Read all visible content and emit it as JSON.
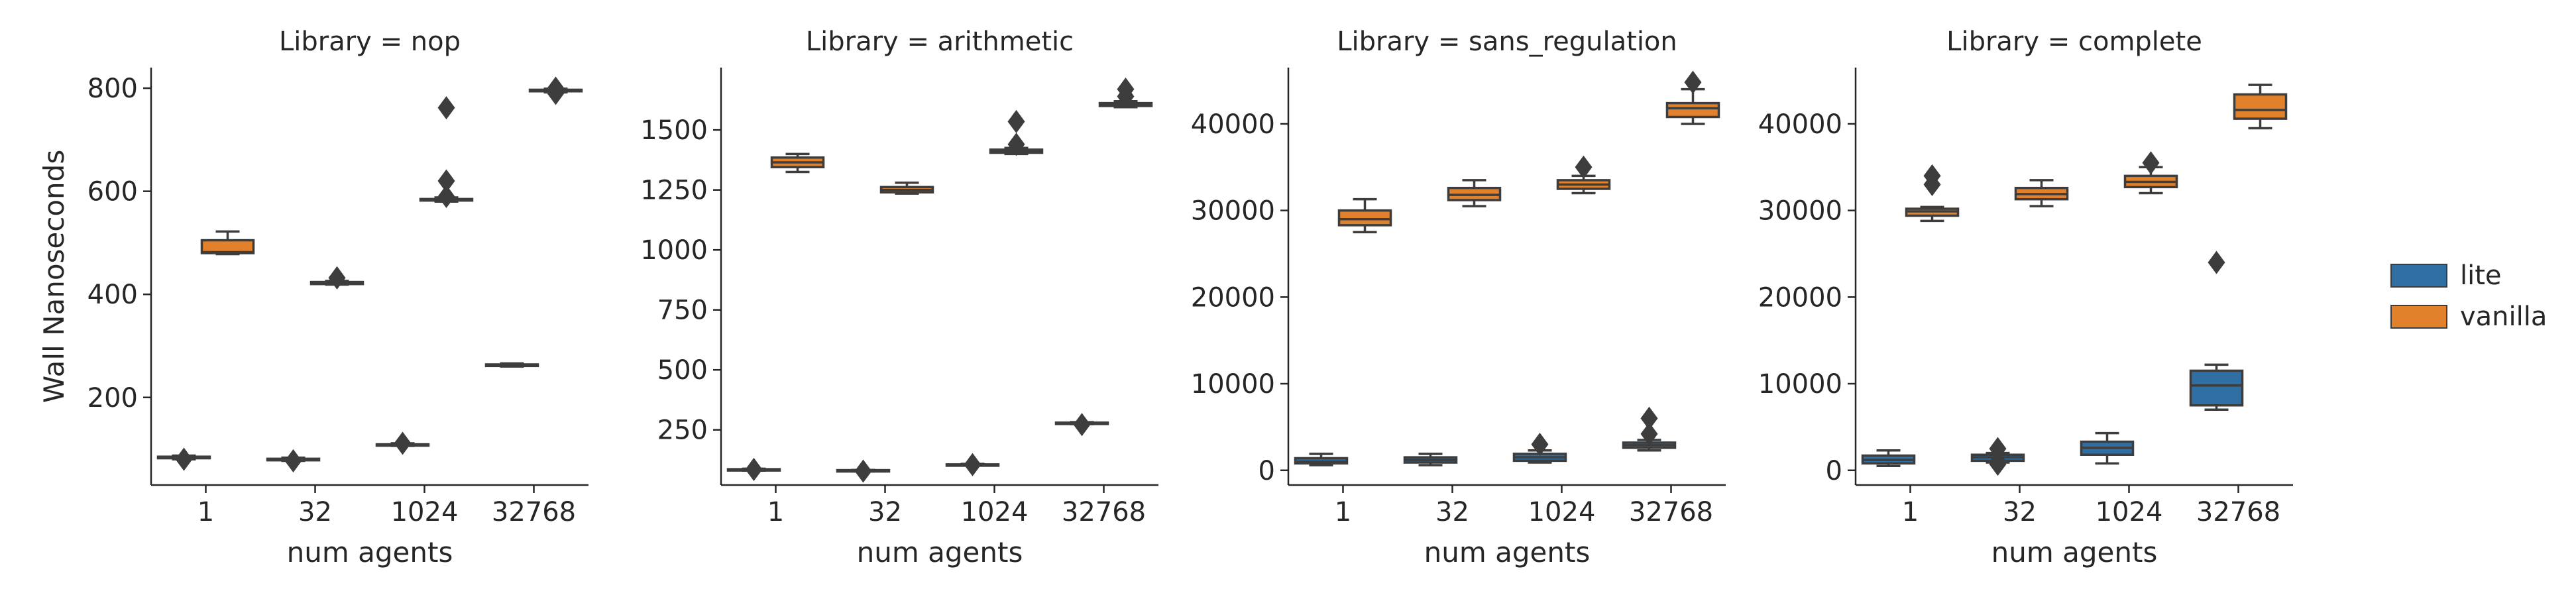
{
  "chart_data": {
    "type": "box",
    "ylabel": "Wall Nanoseconds",
    "xlabel": "num agents",
    "categories": [
      "1",
      "32",
      "1024",
      "32768"
    ],
    "legend": {
      "placement": "right",
      "entries": [
        {
          "name": "lite",
          "color": "#2f6fa3"
        },
        {
          "name": "vanilla",
          "color": "#e1812c"
        }
      ]
    },
    "panels": [
      {
        "title": "Library = nop",
        "ylim": [
          30,
          840
        ],
        "yticks": [
          200,
          400,
          600,
          800
        ],
        "boxes": [
          {
            "category": "1",
            "series": "lite",
            "whislo": 80,
            "q1": 82,
            "med": 84,
            "q3": 85,
            "whishi": 87,
            "fliers": [
              80
            ]
          },
          {
            "category": "1",
            "series": "vanilla",
            "whislo": 478,
            "q1": 480,
            "med": 482,
            "q3": 505,
            "whishi": 522,
            "fliers": []
          },
          {
            "category": "32",
            "series": "lite",
            "whislo": 77,
            "q1": 78,
            "med": 80,
            "q3": 81,
            "whishi": 83,
            "fliers": [
              77
            ]
          },
          {
            "category": "32",
            "series": "vanilla",
            "whislo": 419,
            "q1": 420,
            "med": 422,
            "q3": 424,
            "whishi": 426,
            "fliers": [
              432
            ]
          },
          {
            "category": "1024",
            "series": "lite",
            "whislo": 106,
            "q1": 107,
            "med": 108,
            "q3": 109,
            "whishi": 111,
            "fliers": [
              111
            ]
          },
          {
            "category": "1024",
            "series": "vanilla",
            "whislo": 580,
            "q1": 582,
            "med": 583,
            "q3": 585,
            "whishi": 588,
            "fliers": [
              590,
              620,
              762
            ]
          },
          {
            "category": "32768",
            "series": "lite",
            "whislo": 260,
            "q1": 261,
            "med": 262,
            "q3": 264,
            "whishi": 266,
            "fliers": []
          },
          {
            "category": "32768",
            "series": "vanilla",
            "whislo": 792,
            "q1": 794,
            "med": 795,
            "q3": 797,
            "whishi": 799,
            "fliers": [
              790,
              800
            ]
          }
        ]
      },
      {
        "title": "Library = arithmetic",
        "ylim": [
          20,
          1760
        ],
        "yticks": [
          250,
          500,
          750,
          1000,
          1250,
          1500
        ],
        "boxes": [
          {
            "category": "1",
            "series": "lite",
            "whislo": 80,
            "q1": 82,
            "med": 84,
            "q3": 86,
            "whishi": 88,
            "fliers": [
              85
            ]
          },
          {
            "category": "1",
            "series": "vanilla",
            "whislo": 1325,
            "q1": 1345,
            "med": 1365,
            "q3": 1385,
            "whishi": 1400,
            "fliers": []
          },
          {
            "category": "32",
            "series": "lite",
            "whislo": 77,
            "q1": 78,
            "med": 80,
            "q3": 82,
            "whishi": 83,
            "fliers": [
              78
            ]
          },
          {
            "category": "32",
            "series": "vanilla",
            "whislo": 1235,
            "q1": 1240,
            "med": 1250,
            "q3": 1262,
            "whishi": 1280,
            "fliers": []
          },
          {
            "category": "1024",
            "series": "lite",
            "whislo": 102,
            "q1": 103,
            "med": 104,
            "q3": 106,
            "whishi": 108,
            "fliers": [
              105
            ]
          },
          {
            "category": "1024",
            "series": "vanilla",
            "whislo": 1400,
            "q1": 1405,
            "med": 1410,
            "q3": 1418,
            "whishi": 1425,
            "fliers": [
              1440,
              1535
            ]
          },
          {
            "category": "32768",
            "series": "lite",
            "whislo": 274,
            "q1": 276,
            "med": 278,
            "q3": 280,
            "whishi": 282,
            "fliers": [
              272
            ]
          },
          {
            "category": "32768",
            "series": "vanilla",
            "whislo": 1595,
            "q1": 1600,
            "med": 1605,
            "q3": 1612,
            "whishi": 1620,
            "fliers": [
              1640,
              1670
            ]
          }
        ]
      },
      {
        "title": "Library = sans_regulation",
        "ylim": [
          -1700,
          46500
        ],
        "yticks": [
          0,
          10000,
          20000,
          30000,
          40000
        ],
        "boxes": [
          {
            "category": "1",
            "series": "lite",
            "whislo": 600,
            "q1": 800,
            "med": 1000,
            "q3": 1400,
            "whishi": 1900,
            "fliers": []
          },
          {
            "category": "1",
            "series": "vanilla",
            "whislo": 27500,
            "q1": 28300,
            "med": 29000,
            "q3": 30000,
            "whishi": 31300,
            "fliers": []
          },
          {
            "category": "32",
            "series": "lite",
            "whislo": 600,
            "q1": 900,
            "med": 1200,
            "q3": 1500,
            "whishi": 1900,
            "fliers": []
          },
          {
            "category": "32",
            "series": "vanilla",
            "whislo": 30500,
            "q1": 31200,
            "med": 31800,
            "q3": 32600,
            "whishi": 33500,
            "fliers": []
          },
          {
            "category": "1024",
            "series": "lite",
            "whislo": 900,
            "q1": 1100,
            "med": 1500,
            "q3": 1900,
            "whishi": 2300,
            "fliers": [
              3000
            ]
          },
          {
            "category": "1024",
            "series": "vanilla",
            "whislo": 32000,
            "q1": 32500,
            "med": 33000,
            "q3": 33500,
            "whishi": 34000,
            "fliers": [
              35000
            ]
          },
          {
            "category": "32768",
            "series": "lite",
            "whislo": 2300,
            "q1": 2600,
            "med": 2900,
            "q3": 3200,
            "whishi": 3500,
            "fliers": [
              4200,
              6000
            ]
          },
          {
            "category": "32768",
            "series": "vanilla",
            "whislo": 40000,
            "q1": 40800,
            "med": 41800,
            "q3": 42400,
            "whishi": 44000,
            "fliers": [
              44800
            ]
          }
        ]
      },
      {
        "title": "Library = complete",
        "ylim": [
          -1700,
          46500
        ],
        "yticks": [
          0,
          10000,
          20000,
          30000,
          40000
        ],
        "boxes": [
          {
            "category": "1",
            "series": "lite",
            "whislo": 500,
            "q1": 800,
            "med": 1200,
            "q3": 1700,
            "whishi": 2300,
            "fliers": []
          },
          {
            "category": "1",
            "series": "vanilla",
            "whislo": 28800,
            "q1": 29400,
            "med": 29900,
            "q3": 30200,
            "whishi": 30400,
            "fliers": [
              33000,
              34000
            ]
          },
          {
            "category": "32",
            "series": "lite",
            "whislo": 900,
            "q1": 1100,
            "med": 1500,
            "q3": 1800,
            "whishi": 2000,
            "fliers": [
              700,
              1000,
              2500
            ]
          },
          {
            "category": "32",
            "series": "vanilla",
            "whislo": 30500,
            "q1": 31300,
            "med": 31900,
            "q3": 32600,
            "whishi": 33500,
            "fliers": []
          },
          {
            "category": "1024",
            "series": "lite",
            "whislo": 800,
            "q1": 1800,
            "med": 2600,
            "q3": 3300,
            "whishi": 4300,
            "fliers": []
          },
          {
            "category": "1024",
            "series": "vanilla",
            "whislo": 32000,
            "q1": 32700,
            "med": 33300,
            "q3": 34000,
            "whishi": 35000,
            "fliers": [
              35500
            ]
          },
          {
            "category": "32768",
            "series": "lite",
            "whislo": 7000,
            "q1": 7500,
            "med": 9800,
            "q3": 11500,
            "whishi": 12200,
            "fliers": [
              24000
            ]
          },
          {
            "category": "32768",
            "series": "vanilla",
            "whislo": 39500,
            "q1": 40600,
            "med": 41600,
            "q3": 43400,
            "whishi": 44500,
            "fliers": []
          }
        ]
      }
    ]
  }
}
